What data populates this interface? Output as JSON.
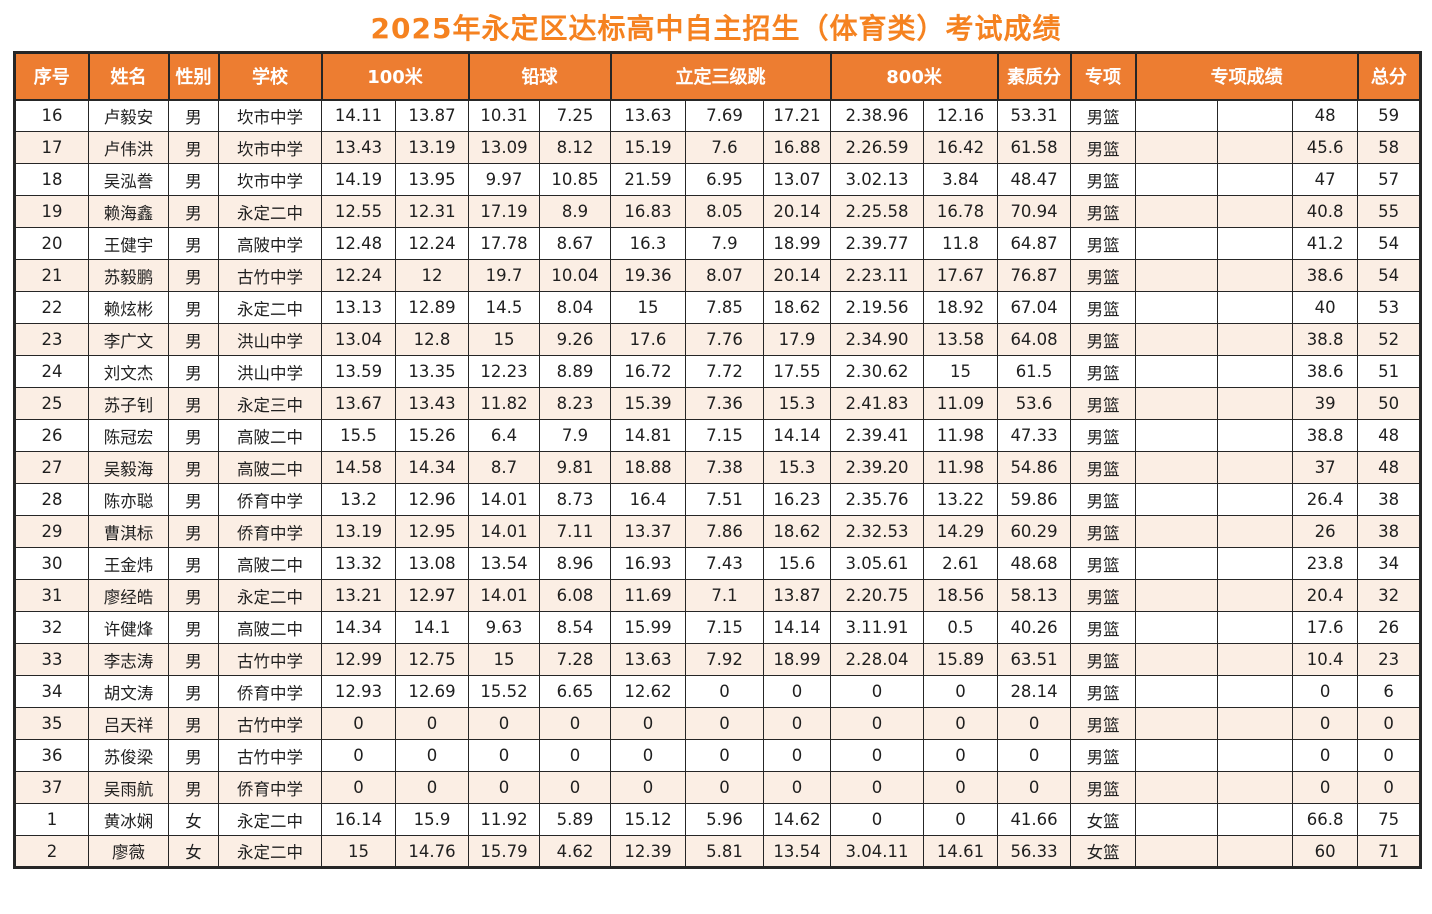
{
  "title": "2025年永定区达标高中自主招生（体育类）考试成绩",
  "colors": {
    "header_bg": "#ED7D31",
    "title_text": "#F58220",
    "alt_row_bg": "#FBEEE4",
    "border": "#262626"
  },
  "table": {
    "headers": {
      "xu_hao": "序号",
      "xing_ming": "姓名",
      "xing_bie": "性别",
      "xue_xiao": "学校",
      "m100": "100米",
      "qian_qiu": "铅球",
      "li_ding_san_ji_tiao": "立定三级跳",
      "m800": "800米",
      "su_zhi_fen": "素质分",
      "zhuan_xiang": "专项",
      "zhuan_xiang_cheng_ji": "专项成绩",
      "zong_fen": "总分"
    },
    "rows": [
      [
        "16",
        "卢毅安",
        "男",
        "坎市中学",
        "14.11",
        "13.87",
        "10.31",
        "7.25",
        "13.63",
        "7.69",
        "17.21",
        "2.38.96",
        "12.16",
        "53.31",
        "男篮",
        "",
        "",
        "48",
        "59"
      ],
      [
        "17",
        "卢伟洪",
        "男",
        "坎市中学",
        "13.43",
        "13.19",
        "13.09",
        "8.12",
        "15.19",
        "7.6",
        "16.88",
        "2.26.59",
        "16.42",
        "61.58",
        "男篮",
        "",
        "",
        "45.6",
        "58"
      ],
      [
        "18",
        "吴泓誊",
        "男",
        "坎市中学",
        "14.19",
        "13.95",
        "9.97",
        "10.85",
        "21.59",
        "6.95",
        "13.07",
        "3.02.13",
        "3.84",
        "48.47",
        "男篮",
        "",
        "",
        "47",
        "57"
      ],
      [
        "19",
        "赖海鑫",
        "男",
        "永定二中",
        "12.55",
        "12.31",
        "17.19",
        "8.9",
        "16.83",
        "8.05",
        "20.14",
        "2.25.58",
        "16.78",
        "70.94",
        "男篮",
        "",
        "",
        "40.8",
        "55"
      ],
      [
        "20",
        "王健宇",
        "男",
        "高陂中学",
        "12.48",
        "12.24",
        "17.78",
        "8.67",
        "16.3",
        "7.9",
        "18.99",
        "2.39.77",
        "11.8",
        "64.87",
        "男篮",
        "",
        "",
        "41.2",
        "54"
      ],
      [
        "21",
        "苏毅鹏",
        "男",
        "古竹中学",
        "12.24",
        "12",
        "19.7",
        "10.04",
        "19.36",
        "8.07",
        "20.14",
        "2.23.11",
        "17.67",
        "76.87",
        "男篮",
        "",
        "",
        "38.6",
        "54"
      ],
      [
        "22",
        "赖炫彬",
        "男",
        "永定二中",
        "13.13",
        "12.89",
        "14.5",
        "8.04",
        "15",
        "7.85",
        "18.62",
        "2.19.56",
        "18.92",
        "67.04",
        "男篮",
        "",
        "",
        "40",
        "53"
      ],
      [
        "23",
        "李广文",
        "男",
        "洪山中学",
        "13.04",
        "12.8",
        "15",
        "9.26",
        "17.6",
        "7.76",
        "17.9",
        "2.34.90",
        "13.58",
        "64.08",
        "男篮",
        "",
        "",
        "38.8",
        "52"
      ],
      [
        "24",
        "刘文杰",
        "男",
        "洪山中学",
        "13.59",
        "13.35",
        "12.23",
        "8.89",
        "16.72",
        "7.72",
        "17.55",
        "2.30.62",
        "15",
        "61.5",
        "男篮",
        "",
        "",
        "38.6",
        "51"
      ],
      [
        "25",
        "苏子钊",
        "男",
        "永定三中",
        "13.67",
        "13.43",
        "11.82",
        "8.23",
        "15.39",
        "7.36",
        "15.3",
        "2.41.83",
        "11.09",
        "53.6",
        "男篮",
        "",
        "",
        "39",
        "50"
      ],
      [
        "26",
        "陈冠宏",
        "男",
        "高陂二中",
        "15.5",
        "15.26",
        "6.4",
        "7.9",
        "14.81",
        "7.15",
        "14.14",
        "2.39.41",
        "11.98",
        "47.33",
        "男篮",
        "",
        "",
        "38.8",
        "48"
      ],
      [
        "27",
        "吴毅海",
        "男",
        "高陂二中",
        "14.58",
        "14.34",
        "8.7",
        "9.81",
        "18.88",
        "7.38",
        "15.3",
        "2.39.20",
        "11.98",
        "54.86",
        "男篮",
        "",
        "",
        "37",
        "48"
      ],
      [
        "28",
        "陈亦聪",
        "男",
        "侨育中学",
        "13.2",
        "12.96",
        "14.01",
        "8.73",
        "16.4",
        "7.51",
        "16.23",
        "2.35.76",
        "13.22",
        "59.86",
        "男篮",
        "",
        "",
        "26.4",
        "38"
      ],
      [
        "29",
        "曹淇标",
        "男",
        "侨育中学",
        "13.19",
        "12.95",
        "14.01",
        "7.11",
        "13.37",
        "7.86",
        "18.62",
        "2.32.53",
        "14.29",
        "60.29",
        "男篮",
        "",
        "",
        "26",
        "38"
      ],
      [
        "30",
        "王金炜",
        "男",
        "高陂二中",
        "13.32",
        "13.08",
        "13.54",
        "8.96",
        "16.93",
        "7.43",
        "15.6",
        "3.05.61",
        "2.61",
        "48.68",
        "男篮",
        "",
        "",
        "23.8",
        "34"
      ],
      [
        "31",
        "廖经皓",
        "男",
        "永定二中",
        "13.21",
        "12.97",
        "14.01",
        "6.08",
        "11.69",
        "7.1",
        "13.87",
        "2.20.75",
        "18.56",
        "58.13",
        "男篮",
        "",
        "",
        "20.4",
        "32"
      ],
      [
        "32",
        "许健烽",
        "男",
        "高陂二中",
        "14.34",
        "14.1",
        "9.63",
        "8.54",
        "15.99",
        "7.15",
        "14.14",
        "3.11.91",
        "0.5",
        "40.26",
        "男篮",
        "",
        "",
        "17.6",
        "26"
      ],
      [
        "33",
        "李志涛",
        "男",
        "古竹中学",
        "12.99",
        "12.75",
        "15",
        "7.28",
        "13.63",
        "7.92",
        "18.99",
        "2.28.04",
        "15.89",
        "63.51",
        "男篮",
        "",
        "",
        "10.4",
        "23"
      ],
      [
        "34",
        "胡文涛",
        "男",
        "侨育中学",
        "12.93",
        "12.69",
        "15.52",
        "6.65",
        "12.62",
        "0",
        "0",
        "0",
        "0",
        "28.14",
        "男篮",
        "",
        "",
        "0",
        "6"
      ],
      [
        "35",
        "吕天祥",
        "男",
        "古竹中学",
        "0",
        "0",
        "0",
        "0",
        "0",
        "0",
        "0",
        "0",
        "0",
        "0",
        "男篮",
        "",
        "",
        "0",
        "0"
      ],
      [
        "36",
        "苏俊梁",
        "男",
        "古竹中学",
        "0",
        "0",
        "0",
        "0",
        "0",
        "0",
        "0",
        "0",
        "0",
        "0",
        "男篮",
        "",
        "",
        "0",
        "0"
      ],
      [
        "37",
        "吴雨航",
        "男",
        "侨育中学",
        "0",
        "0",
        "0",
        "0",
        "0",
        "0",
        "0",
        "0",
        "0",
        "0",
        "男篮",
        "",
        "",
        "0",
        "0"
      ],
      [
        "1",
        "黄冰娴",
        "女",
        "永定二中",
        "16.14",
        "15.9",
        "11.92",
        "5.89",
        "15.12",
        "5.96",
        "14.62",
        "0",
        "0",
        "41.66",
        "女篮",
        "",
        "",
        "66.8",
        "75"
      ],
      [
        "2",
        "廖薇",
        "女",
        "永定二中",
        "15",
        "14.76",
        "15.79",
        "4.62",
        "12.39",
        "5.81",
        "13.54",
        "3.04.11",
        "14.61",
        "56.33",
        "女篮",
        "",
        "",
        "60",
        "71"
      ]
    ]
  }
}
